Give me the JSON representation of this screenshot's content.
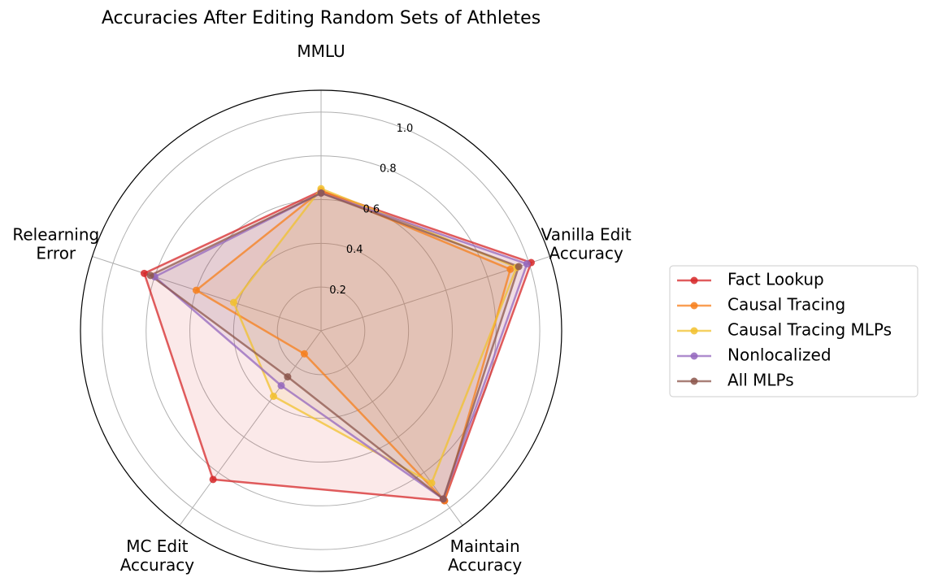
{
  "chart_data": {
    "type": "radar",
    "title": "Accuracies After Editing Random Sets of Athletes",
    "axes": [
      [
        "MMLU"
      ],
      [
        "Vanilla Edit",
        "Accuracy"
      ],
      [
        "Maintain",
        "Accuracy"
      ],
      [
        "MC Edit",
        "Accuracy"
      ],
      [
        "Relearning",
        "Error"
      ]
    ],
    "rlim": [
      0,
      1.1
    ],
    "radial_ticks": [
      0.2,
      0.4,
      0.6,
      0.8,
      1.0
    ],
    "radial_tick_labels": [
      "0.2",
      "0.4",
      "0.6",
      "0.8",
      "1.0"
    ],
    "grid": true,
    "legend_position": "right",
    "series": [
      {
        "name": "Fact Lookup",
        "color": "#d62728",
        "values": [
          0.64,
          1.01,
          0.96,
          0.84,
          0.85
        ]
      },
      {
        "name": "Causal Tracing",
        "color": "#f77f1b",
        "values": [
          0.64,
          0.91,
          0.96,
          0.13,
          0.6
        ]
      },
      {
        "name": "Causal Tracing MLPs",
        "color": "#f2c12e",
        "values": [
          0.65,
          0.94,
          0.86,
          0.37,
          0.42
        ]
      },
      {
        "name": "Nonlocalized",
        "color": "#9467bd",
        "values": [
          0.63,
          0.99,
          0.95,
          0.31,
          0.8
        ]
      },
      {
        "name": "All MLPs",
        "color": "#8c564b",
        "values": [
          0.63,
          0.95,
          0.95,
          0.26,
          0.82
        ]
      }
    ]
  }
}
